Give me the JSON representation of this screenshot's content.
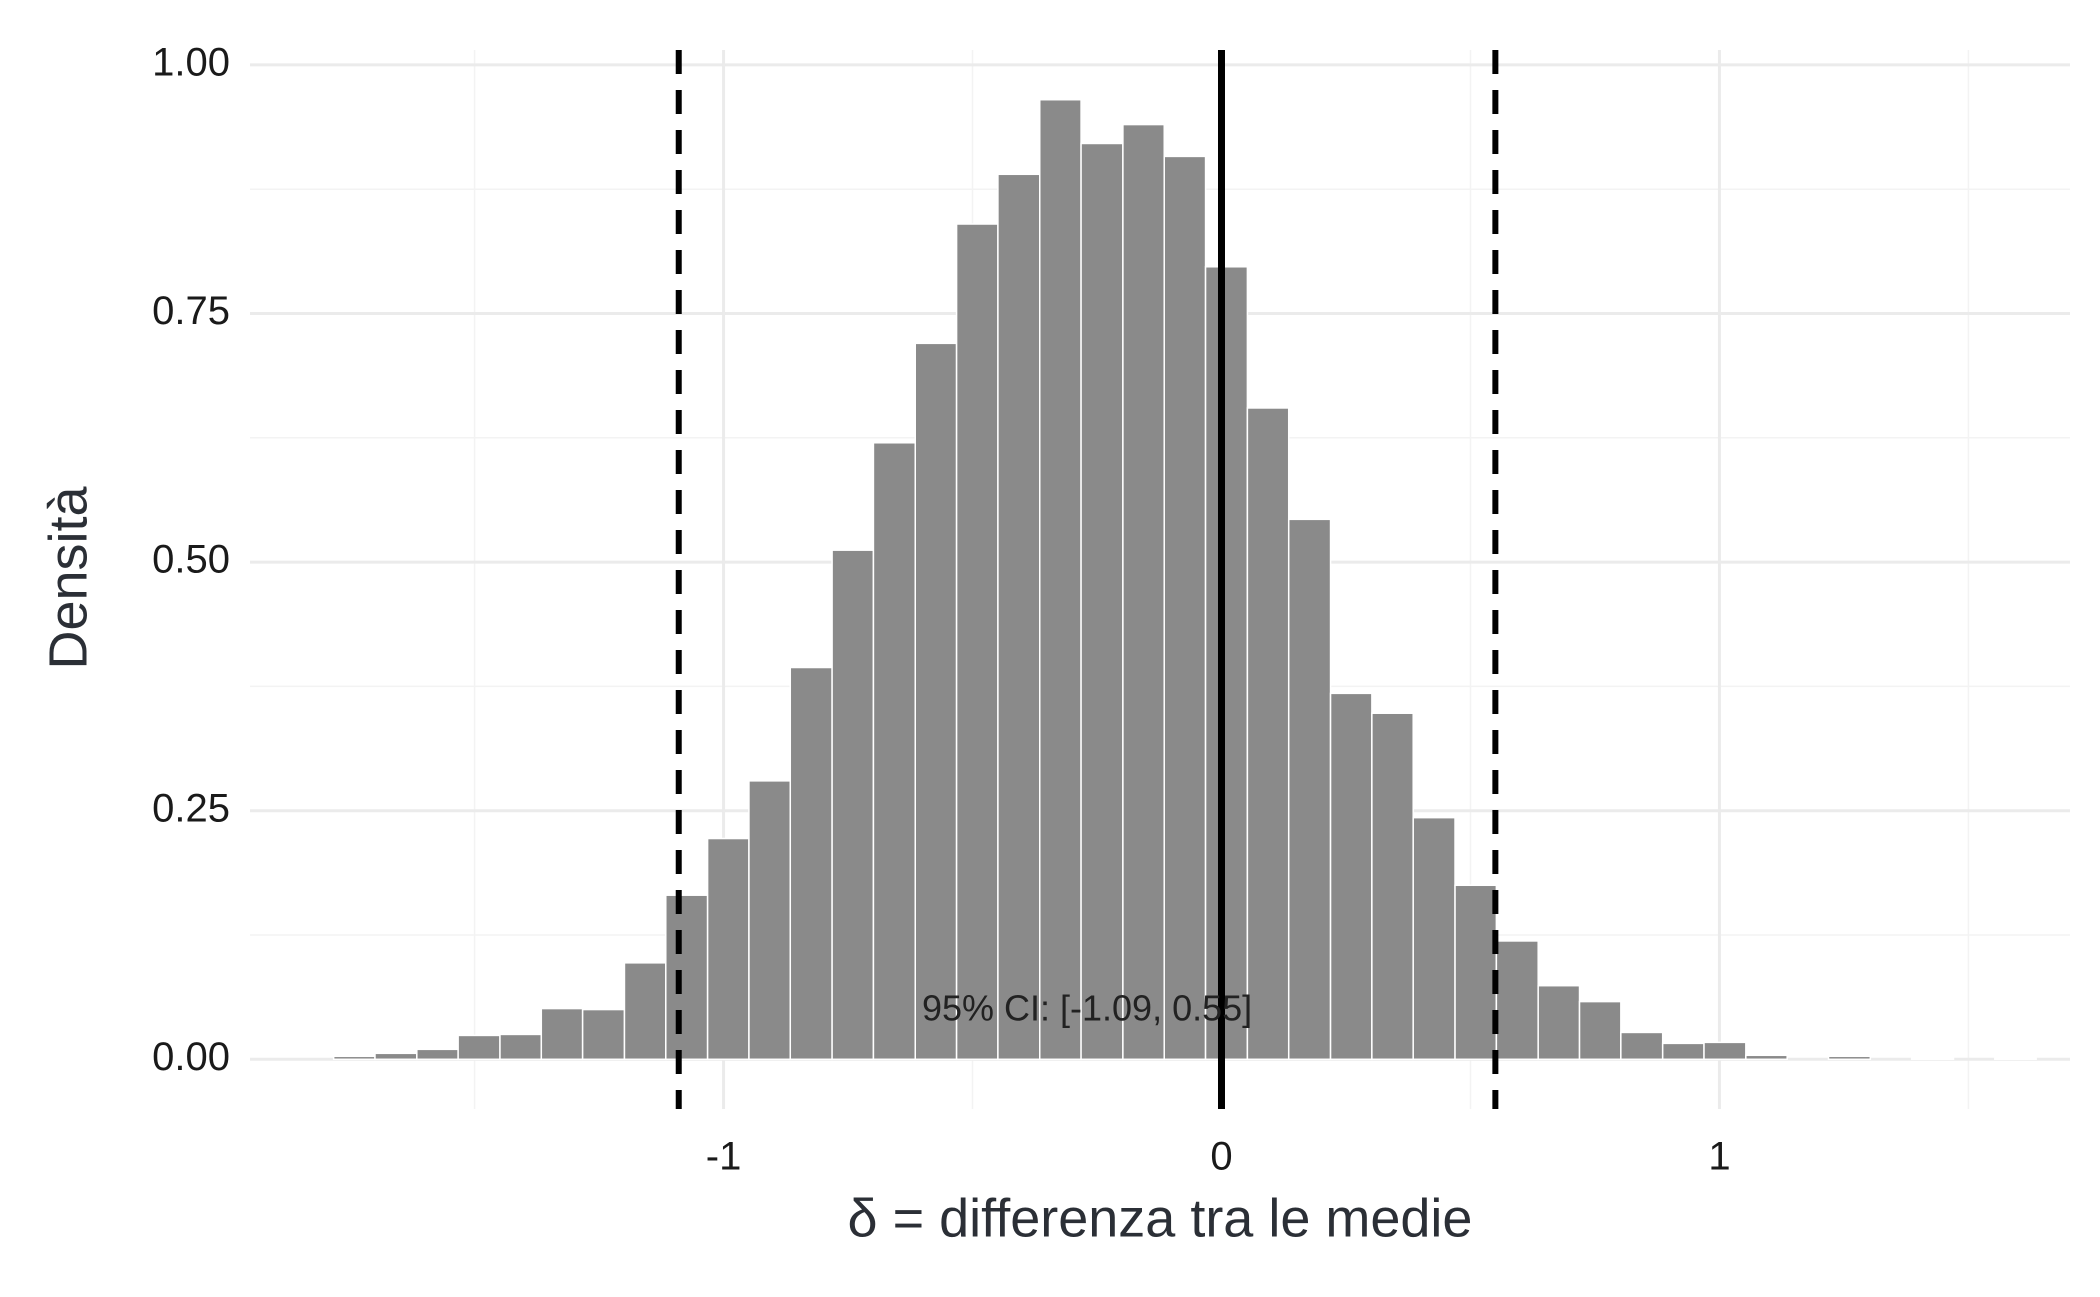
{
  "chart_data": {
    "type": "histogram",
    "x_label": "δ = differenza tra le medie",
    "y_label": "Densità",
    "bins": [
      -1.783,
      -1.7,
      -1.616,
      -1.533,
      -1.449,
      -1.366,
      -1.283,
      -1.199,
      -1.116,
      -1.032,
      -0.949,
      -0.866,
      -0.782,
      -0.699,
      -0.615,
      -0.532,
      -0.449,
      -0.365,
      -0.282,
      -0.198,
      -0.115,
      -0.032,
      0.052,
      0.135,
      0.219,
      0.302,
      0.385,
      0.469,
      0.552,
      0.636,
      0.719,
      0.802,
      0.886,
      0.969,
      1.053,
      1.136,
      1.219,
      1.303,
      1.386,
      1.47,
      1.553,
      1.636
    ],
    "values": [
      0.003,
      0.006,
      0.01,
      0.024,
      0.025,
      0.051,
      0.05,
      0.097,
      0.165,
      0.222,
      0.28,
      0.394,
      0.512,
      0.62,
      0.72,
      0.84,
      0.89,
      0.965,
      0.921,
      0.94,
      0.908,
      0.797,
      0.655,
      0.543,
      0.368,
      0.348,
      0.243,
      0.175,
      0.119,
      0.074,
      0.058,
      0.027,
      0.016,
      0.017,
      0.004,
      0,
      0.003,
      0,
      0.001,
      0,
      0.001
    ],
    "color": "#8a8a8a",
    "xlim": [
      -1.951,
      1.704
    ],
    "ylim": [
      -0.05,
      1.015
    ],
    "xticks": [
      -1,
      0,
      1
    ],
    "yticks": [
      {
        "value": 0,
        "label": "0.00"
      },
      {
        "value": 0.25,
        "label": "0.25"
      },
      {
        "value": 0.5,
        "label": "0.50"
      },
      {
        "value": 0.75,
        "label": "0.75"
      },
      {
        "value": 1,
        "label": "1.00"
      }
    ],
    "x_minor_ticks": [
      -1.5,
      -0.5,
      0.5,
      1.5
    ],
    "y_minor_ticks": [
      0.125,
      0.375,
      0.625,
      0.875
    ],
    "grid": true,
    "ci": [
      -1.09,
      0.55
    ],
    "reference_line": 0,
    "annotation": "95% CI: [-1.09, 0.55]"
  }
}
